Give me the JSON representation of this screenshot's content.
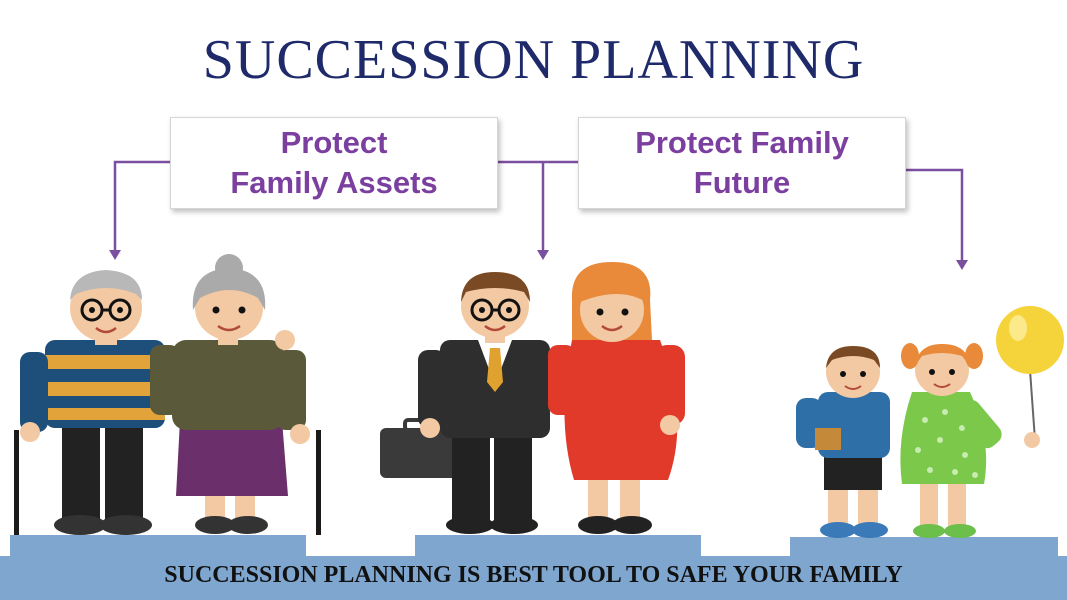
{
  "title": "SUCCESSION PLANNING",
  "box_left": {
    "line1": "Protect",
    "line2": "Family Assets"
  },
  "box_right": {
    "line1": "Protect Family",
    "line2": "Future"
  },
  "footer": "SUCCESSION PLANNING IS BEST TOOL TO SAFE YOUR FAMILY",
  "colors": {
    "title": "#1f2a6b",
    "box_text": "#7b3fa0",
    "connector": "#7b4fa0",
    "platform": "#7ea6cf"
  }
}
